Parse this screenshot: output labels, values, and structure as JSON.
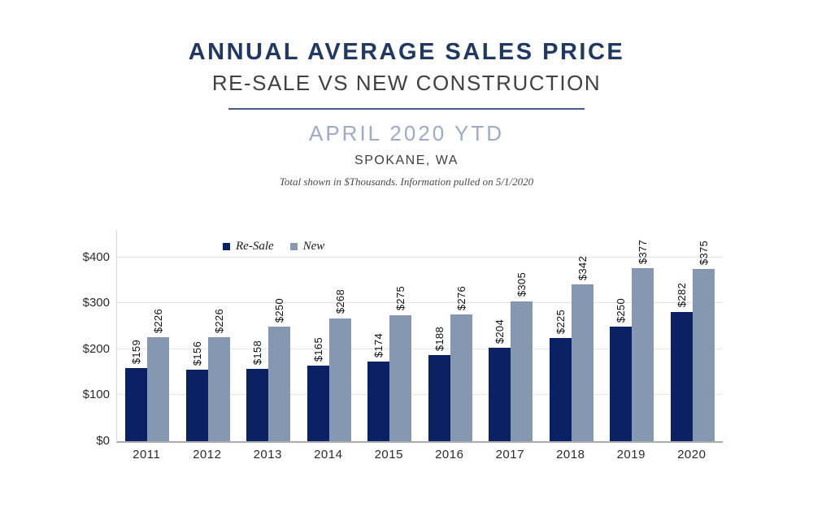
{
  "header": {
    "title": "ANNUAL AVERAGE SALES PRICE",
    "subtitle": "RE-SALE VS NEW CONSTRUCTION",
    "period": "APRIL 2020 YTD",
    "location": "SPOKANE, WA",
    "fine_print": "Total shown in $Thousands. Information pulled on 5/1/2020"
  },
  "colors": {
    "title_navy": "#1F3864",
    "subtitle_gray": "#414141",
    "period_blue": "#9BABC8",
    "divider_navy": "#44618C",
    "resale_bar": "#0A2264",
    "new_bar": "#8597B1",
    "gridline": "#E4E4E4",
    "axis_line": "#ABABAB"
  },
  "chart_data": {
    "type": "bar",
    "title": "Annual Average Sales Price — Re-Sale vs New Construction, April 2020 YTD, Spokane WA",
    "categories": [
      "2011",
      "2012",
      "2013",
      "2014",
      "2015",
      "2016",
      "2017",
      "2018",
      "2019",
      "2020"
    ],
    "series": [
      {
        "name": "Re-Sale",
        "color": "#0A2264",
        "values": [
          159,
          156,
          158,
          165,
          174,
          188,
          204,
          225,
          250,
          282
        ]
      },
      {
        "name": "New",
        "color": "#8597B1",
        "values": [
          226,
          226,
          250,
          268,
          275,
          276,
          305,
          342,
          377,
          375
        ]
      }
    ],
    "value_prefix": "$",
    "data_labels": "rotated-90-above-bars",
    "xlabel": "",
    "ylabel": "",
    "y_ticks": [
      "$0",
      "$100",
      "$200",
      "$300",
      "$400"
    ],
    "y_tick_values": [
      0,
      100,
      200,
      300,
      400
    ],
    "ylim": [
      0,
      460
    ],
    "grid": true,
    "legend_position": "top-left-inside"
  }
}
